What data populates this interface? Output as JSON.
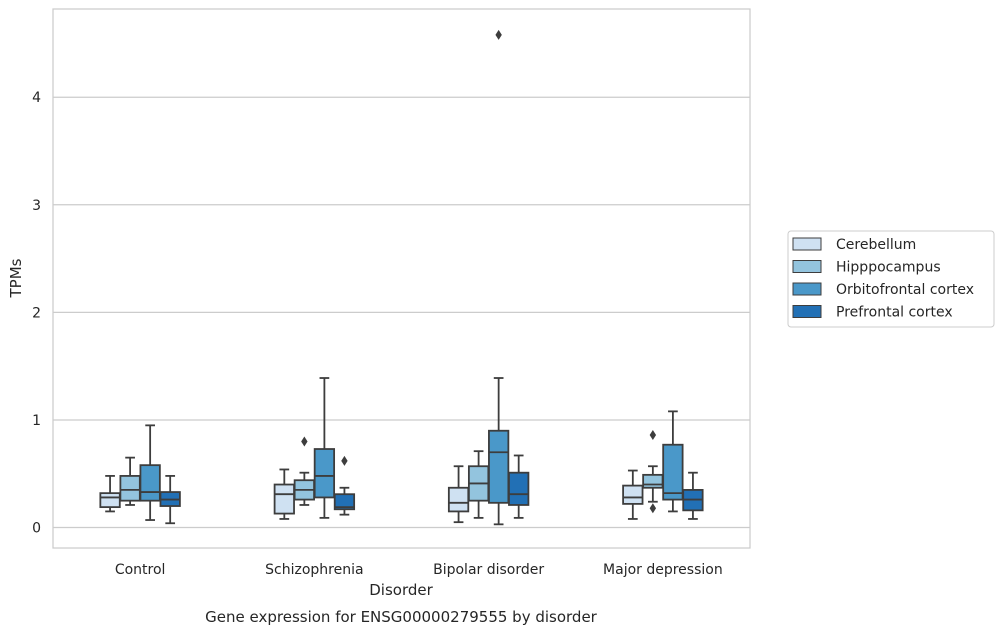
{
  "chart_data": {
    "type": "box",
    "xlabel": "Disorder",
    "ylabel": "TPMs",
    "caption": "Gene expression for ENSG00000279555 by disorder",
    "ylim": [
      -0.19,
      4.82
    ],
    "yticks": [
      0,
      1,
      2,
      3,
      4
    ],
    "grid": "horizontal",
    "legend_position": "right",
    "categories": [
      "Control",
      "Schizophrenia",
      "Bipolar disorder",
      "Major depression"
    ],
    "series": [
      {
        "name": "Cerebellum",
        "color": "#cfe1f2",
        "boxes": [
          {
            "whislo": 0.15,
            "q1": 0.19,
            "med": 0.28,
            "q3": 0.32,
            "whishi": 0.48,
            "fliers": []
          },
          {
            "whislo": 0.08,
            "q1": 0.13,
            "med": 0.31,
            "q3": 0.4,
            "whishi": 0.54,
            "fliers": []
          },
          {
            "whislo": 0.05,
            "q1": 0.15,
            "med": 0.23,
            "q3": 0.37,
            "whishi": 0.57,
            "fliers": []
          },
          {
            "whislo": 0.08,
            "q1": 0.22,
            "med": 0.28,
            "q3": 0.39,
            "whishi": 0.53,
            "fliers": []
          }
        ]
      },
      {
        "name": "Hipppocampus",
        "color": "#93c4de",
        "boxes": [
          {
            "whislo": 0.21,
            "q1": 0.25,
            "med": 0.35,
            "q3": 0.48,
            "whishi": 0.65,
            "fliers": []
          },
          {
            "whislo": 0.21,
            "q1": 0.26,
            "med": 0.35,
            "q3": 0.44,
            "whishi": 0.51,
            "fliers": [
              0.8
            ]
          },
          {
            "whislo": 0.09,
            "q1": 0.25,
            "med": 0.41,
            "q3": 0.57,
            "whishi": 0.71,
            "fliers": []
          },
          {
            "whislo": 0.24,
            "q1": 0.37,
            "med": 0.4,
            "q3": 0.49,
            "whishi": 0.57,
            "fliers": [
              0.86,
              0.18
            ]
          }
        ]
      },
      {
        "name": "Orbitofrontal cortex",
        "color": "#4a98c9",
        "boxes": [
          {
            "whislo": 0.07,
            "q1": 0.25,
            "med": 0.33,
            "q3": 0.58,
            "whishi": 0.95,
            "fliers": []
          },
          {
            "whislo": 0.09,
            "q1": 0.28,
            "med": 0.48,
            "q3": 0.73,
            "whishi": 1.39,
            "fliers": []
          },
          {
            "whislo": 0.03,
            "q1": 0.23,
            "med": 0.7,
            "q3": 0.9,
            "whishi": 1.39,
            "fliers": [
              4.58
            ]
          },
          {
            "whislo": 0.15,
            "q1": 0.26,
            "med": 0.32,
            "q3": 0.77,
            "whishi": 1.08,
            "fliers": []
          }
        ]
      },
      {
        "name": "Prefrontal cortex",
        "color": "#2270b5",
        "boxes": [
          {
            "whislo": 0.04,
            "q1": 0.2,
            "med": 0.26,
            "q3": 0.33,
            "whishi": 0.48,
            "fliers": []
          },
          {
            "whislo": 0.12,
            "q1": 0.17,
            "med": 0.19,
            "q3": 0.31,
            "whishi": 0.37,
            "fliers": [
              0.62
            ]
          },
          {
            "whislo": 0.09,
            "q1": 0.21,
            "med": 0.31,
            "q3": 0.51,
            "whishi": 0.67,
            "fliers": []
          },
          {
            "whislo": 0.08,
            "q1": 0.16,
            "med": 0.26,
            "q3": 0.35,
            "whishi": 0.51,
            "fliers": []
          }
        ]
      }
    ]
  }
}
